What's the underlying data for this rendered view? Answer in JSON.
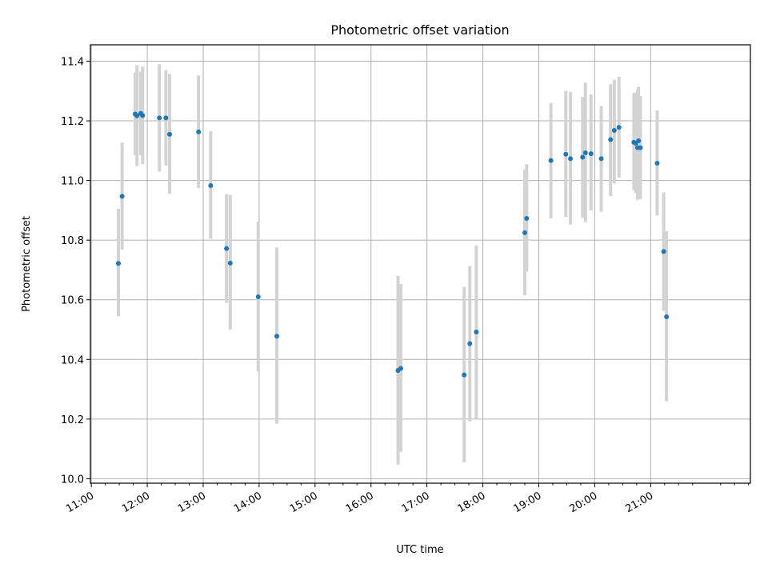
{
  "chart_data": {
    "type": "scatter",
    "title": "Photometric offset variation",
    "xlabel": "UTC time",
    "ylabel": "Photometric offset",
    "x_tick_labels": [
      "11:00",
      "12:00",
      "13:00",
      "14:00",
      "15:00",
      "16:00",
      "17:00",
      "18:00",
      "19:00",
      "20:00",
      "21:00"
    ],
    "y_tick_labels": [
      "10.0",
      "10.2",
      "10.4",
      "10.6",
      "10.8",
      "11.0",
      "11.2",
      "11.4"
    ],
    "y_ticks": [
      10.0,
      10.2,
      10.4,
      10.6,
      10.8,
      11.0,
      11.2,
      11.4
    ],
    "xlim": [
      "10:59",
      "22:47"
    ],
    "ylim": [
      9.985,
      11.455
    ],
    "grid": true,
    "colors": {
      "points": "#1f77b4",
      "errorbars": "#d3d3d3",
      "grid": "#b0b0b0"
    },
    "series": [
      {
        "points": [
          {
            "x": "11:29",
            "y": 10.722,
            "lo": 10.545,
            "hi": 10.905
          },
          {
            "x": "11:33",
            "y": 10.947,
            "lo": 10.768,
            "hi": 11.127
          },
          {
            "x": "11:47",
            "y": 11.223,
            "lo": 11.085,
            "hi": 11.362
          },
          {
            "x": "11:49",
            "y": 11.217,
            "lo": 11.048,
            "hi": 11.387
          },
          {
            "x": "11:53",
            "y": 11.225,
            "lo": 11.085,
            "hi": 11.365
          },
          {
            "x": "11:55",
            "y": 11.218,
            "lo": 11.055,
            "hi": 11.382
          },
          {
            "x": "12:13",
            "y": 11.21,
            "lo": 11.03,
            "hi": 11.39
          },
          {
            "x": "12:20",
            "y": 11.21,
            "lo": 11.05,
            "hi": 11.37
          },
          {
            "x": "12:24",
            "y": 11.155,
            "lo": 10.955,
            "hi": 11.357
          },
          {
            "x": "12:55",
            "y": 11.163,
            "lo": 10.975,
            "hi": 11.352
          },
          {
            "x": "13:08",
            "y": 10.983,
            "lo": 10.805,
            "hi": 11.165
          },
          {
            "x": "13:25",
            "y": 10.772,
            "lo": 10.59,
            "hi": 10.955
          },
          {
            "x": "13:29",
            "y": 10.723,
            "lo": 10.5,
            "hi": 10.952
          },
          {
            "x": "13:59",
            "y": 10.61,
            "lo": 10.36,
            "hi": 10.862
          },
          {
            "x": "14:19",
            "y": 10.478,
            "lo": 10.185,
            "hi": 10.775
          },
          {
            "x": "16:29",
            "y": 10.363,
            "lo": 10.047,
            "hi": 10.68
          },
          {
            "x": "16:32",
            "y": 10.37,
            "lo": 10.09,
            "hi": 10.653
          },
          {
            "x": "17:40",
            "y": 10.348,
            "lo": 10.055,
            "hi": 10.643
          },
          {
            "x": "17:46",
            "y": 10.453,
            "lo": 10.193,
            "hi": 10.713
          },
          {
            "x": "17:53",
            "y": 10.492,
            "lo": 10.202,
            "hi": 10.782
          },
          {
            "x": "18:45",
            "y": 10.825,
            "lo": 10.615,
            "hi": 11.037
          },
          {
            "x": "18:47",
            "y": 10.873,
            "lo": 10.695,
            "hi": 11.055
          },
          {
            "x": "19:13",
            "y": 11.067,
            "lo": 10.873,
            "hi": 11.26
          },
          {
            "x": "19:29",
            "y": 11.088,
            "lo": 10.878,
            "hi": 11.3
          },
          {
            "x": "19:34",
            "y": 11.073,
            "lo": 10.852,
            "hi": 11.297
          },
          {
            "x": "19:47",
            "y": 11.078,
            "lo": 10.875,
            "hi": 11.28
          },
          {
            "x": "19:50",
            "y": 11.093,
            "lo": 10.86,
            "hi": 11.328
          },
          {
            "x": "19:56",
            "y": 11.09,
            "lo": 10.9,
            "hi": 11.288
          },
          {
            "x": "20:07",
            "y": 11.073,
            "lo": 10.895,
            "hi": 11.25
          },
          {
            "x": "20:17",
            "y": 11.137,
            "lo": 10.948,
            "hi": 11.323
          },
          {
            "x": "20:21",
            "y": 11.168,
            "lo": 10.99,
            "hi": 11.338
          },
          {
            "x": "20:26",
            "y": 11.178,
            "lo": 11.01,
            "hi": 11.348
          },
          {
            "x": "20:42",
            "y": 11.128,
            "lo": 10.968,
            "hi": 11.293
          },
          {
            "x": "20:44",
            "y": 11.125,
            "lo": 10.958,
            "hi": 11.295
          },
          {
            "x": "20:46",
            "y": 11.11,
            "lo": 10.935,
            "hi": 11.305
          },
          {
            "x": "20:47",
            "y": 11.133,
            "lo": 10.95,
            "hi": 11.315
          },
          {
            "x": "20:49",
            "y": 11.11,
            "lo": 10.938,
            "hi": 11.283
          },
          {
            "x": "21:07",
            "y": 11.058,
            "lo": 10.883,
            "hi": 11.235
          },
          {
            "x": "21:14",
            "y": 10.762,
            "lo": 10.563,
            "hi": 10.96
          },
          {
            "x": "21:17",
            "y": 10.543,
            "lo": 10.26,
            "hi": 10.83
          }
        ]
      }
    ]
  }
}
